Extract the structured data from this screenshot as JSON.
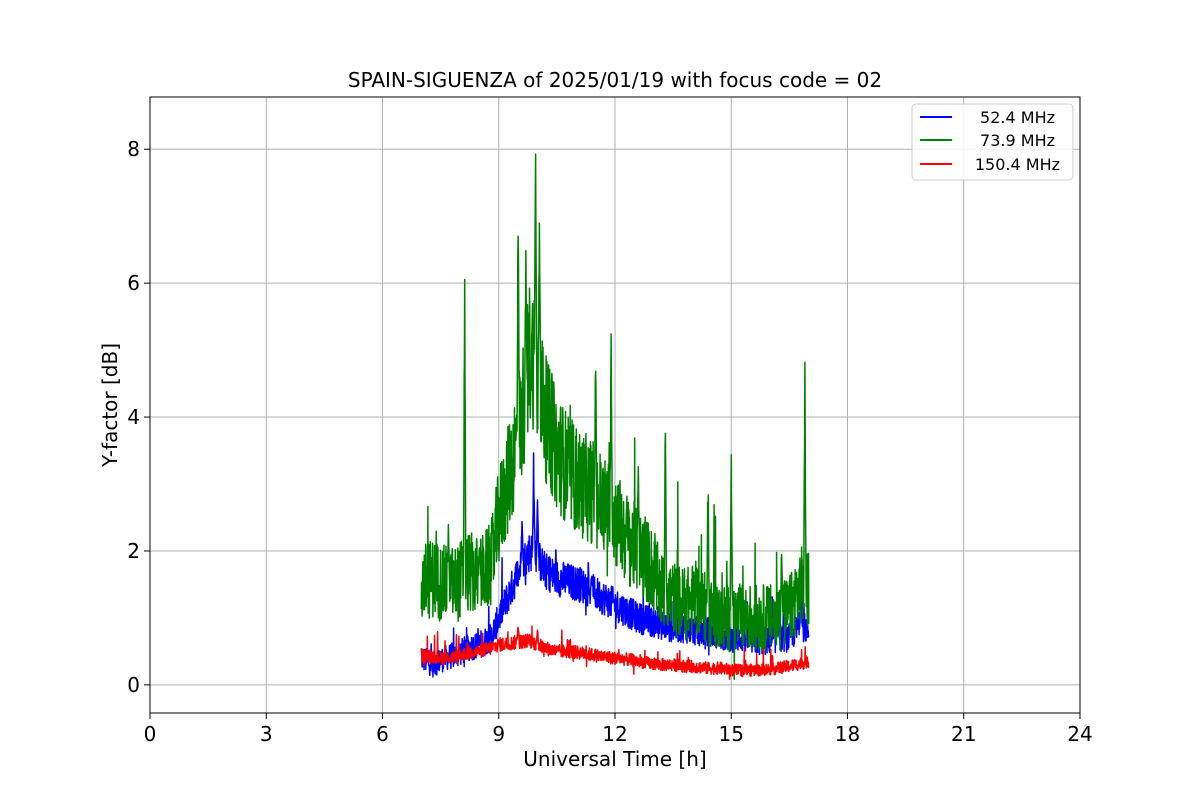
{
  "chart_data": {
    "type": "line",
    "title": "SPAIN-SIGUENZA of 2025/01/19 with focus code = 02",
    "xlabel": "Universal Time [h]",
    "ylabel": "Y-factor [dB]",
    "xlim": [
      0,
      24
    ],
    "ylim": [
      -0.42,
      8.78
    ],
    "xticks": [
      0,
      3,
      6,
      9,
      12,
      15,
      18,
      21,
      24
    ],
    "yticks": [
      0,
      2,
      4,
      6,
      8
    ],
    "grid": true,
    "legend_position": "top-right",
    "series": [
      {
        "name": " 52.4 MHz",
        "color": "#0000ff",
        "x": [
          7.0,
          7.3,
          7.6,
          7.9,
          8.2,
          8.5,
          8.8,
          9.0,
          9.3,
          9.6,
          9.8,
          10.0,
          10.2,
          10.5,
          10.8,
          11.1,
          11.4,
          11.7,
          12.0,
          12.3,
          12.6,
          12.9,
          13.2,
          13.5,
          13.8,
          14.1,
          14.4,
          14.7,
          15.0,
          15.3,
          15.6,
          15.9,
          16.2,
          16.5,
          16.8,
          17.0
        ],
        "y": [
          0.4,
          0.3,
          0.4,
          0.45,
          0.55,
          0.6,
          0.7,
          1.0,
          1.4,
          1.8,
          2.0,
          1.9,
          1.7,
          1.6,
          1.55,
          1.5,
          1.4,
          1.3,
          1.2,
          1.1,
          1.0,
          0.95,
          0.9,
          0.85,
          0.85,
          0.8,
          0.8,
          0.75,
          0.7,
          0.7,
          0.65,
          0.65,
          0.7,
          0.7,
          0.9,
          0.8
        ],
        "spikes": [
          [
            9.9,
            3.5
          ],
          [
            9.6,
            2.6
          ],
          [
            10.0,
            3.0
          ],
          [
            11.4,
            1.7
          ],
          [
            16.2,
            1.5
          ],
          [
            16.8,
            1.5
          ]
        ]
      },
      {
        "name": " 73.9 MHz",
        "color": "#008000",
        "x": [
          7.0,
          7.3,
          7.6,
          7.9,
          8.2,
          8.5,
          8.8,
          9.0,
          9.3,
          9.6,
          9.8,
          10.0,
          10.2,
          10.5,
          10.8,
          11.1,
          11.4,
          11.7,
          12.0,
          12.3,
          12.6,
          12.9,
          13.2,
          13.5,
          13.8,
          14.1,
          14.4,
          14.7,
          15.0,
          15.3,
          15.6,
          15.9,
          16.2,
          16.5,
          16.8,
          17.0
        ],
        "y": [
          1.5,
          1.6,
          1.5,
          1.5,
          1.7,
          1.6,
          1.8,
          2.5,
          3.2,
          4.0,
          5.0,
          4.8,
          4.0,
          3.5,
          3.2,
          3.0,
          2.9,
          2.7,
          2.5,
          2.2,
          2.0,
          1.8,
          1.4,
          1.3,
          1.2,
          1.3,
          1.1,
          1.0,
          1.0,
          1.0,
          1.0,
          1.0,
          1.0,
          1.1,
          1.5,
          1.4
        ],
        "spikes": [
          [
            7.7,
            2.55
          ],
          [
            8.12,
            6.9
          ],
          [
            8.5,
            2.2
          ],
          [
            9.5,
            7.35
          ],
          [
            9.7,
            6.6
          ],
          [
            9.95,
            8.35
          ],
          [
            10.05,
            7.4
          ],
          [
            11.5,
            5.15
          ],
          [
            11.9,
            5.4
          ],
          [
            12.6,
            3.6
          ],
          [
            13.3,
            4.3
          ],
          [
            14.4,
            3.4
          ],
          [
            15.0,
            4.1
          ],
          [
            16.3,
            2.3
          ],
          [
            16.9,
            5.05
          ]
        ]
      },
      {
        "name": "150.4 MHz",
        "color": "#ff0000",
        "x": [
          7.0,
          7.3,
          7.6,
          7.9,
          8.2,
          8.5,
          8.8,
          9.0,
          9.3,
          9.6,
          9.8,
          10.0,
          10.2,
          10.5,
          10.8,
          11.1,
          11.4,
          11.7,
          12.0,
          12.3,
          12.6,
          12.9,
          13.2,
          13.5,
          13.8,
          14.1,
          14.4,
          14.7,
          15.0,
          15.3,
          15.6,
          15.9,
          16.2,
          16.5,
          16.8,
          17.0
        ],
        "y": [
          0.45,
          0.42,
          0.4,
          0.42,
          0.48,
          0.5,
          0.55,
          0.6,
          0.62,
          0.65,
          0.66,
          0.6,
          0.55,
          0.5,
          0.5,
          0.48,
          0.45,
          0.42,
          0.4,
          0.38,
          0.35,
          0.32,
          0.3,
          0.3,
          0.28,
          0.27,
          0.25,
          0.25,
          0.22,
          0.22,
          0.22,
          0.23,
          0.25,
          0.28,
          0.32,
          0.35
        ],
        "spikes": [
          [
            9.5,
            0.95
          ],
          [
            10.0,
            0.85
          ]
        ]
      }
    ]
  }
}
